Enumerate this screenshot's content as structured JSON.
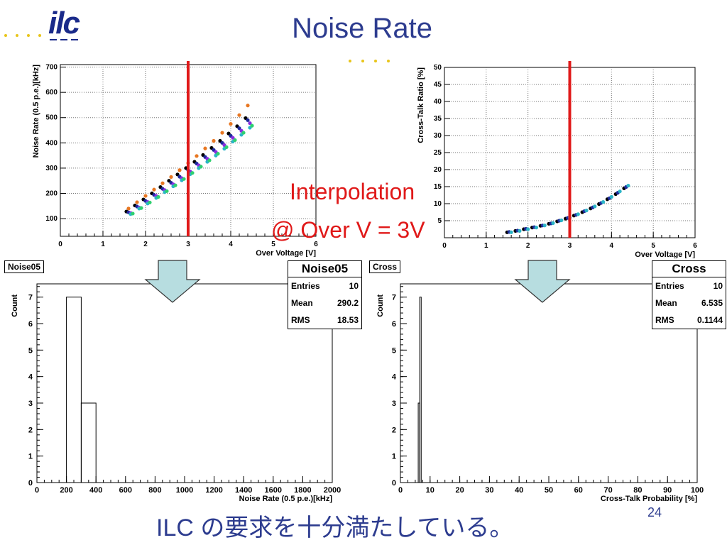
{
  "header": {
    "logo_text": "ilc",
    "title": "Noise Rate"
  },
  "annotation": {
    "line1": "Interpolation",
    "line2": "@ Over V = 3V"
  },
  "footer": {
    "text": "ILC の要求を十分満たしている。",
    "page_number": "24"
  },
  "colors": {
    "marker_line": "#e01919",
    "arrow_fill": "#b7dde0",
    "title": "#2d3c8f"
  },
  "chart_data": [
    {
      "id": "noise_vs_voltage",
      "type": "scatter",
      "xlabel": "Over Voltage [V]",
      "ylabel": "Noise Rate (0.5 p.e.)[kHz]",
      "xlim": [
        0,
        6
      ],
      "ylim": [
        30,
        710
      ],
      "xticks": [
        0,
        1,
        2,
        3,
        4,
        5,
        6
      ],
      "yticks": [
        100,
        200,
        300,
        400,
        500,
        600,
        700
      ],
      "grid": true,
      "vline": 3,
      "series": [
        {
          "color": "#e87722",
          "points": [
            [
              1.6,
              140
            ],
            [
              1.8,
              165
            ],
            [
              2.0,
              190
            ],
            [
              2.2,
              215
            ],
            [
              2.4,
              240
            ],
            [
              2.6,
              265
            ],
            [
              2.8,
              292
            ],
            [
              3.0,
              320
            ],
            [
              3.2,
              348
            ],
            [
              3.4,
              378
            ],
            [
              3.6,
              408
            ],
            [
              3.8,
              440
            ],
            [
              4.0,
              475
            ],
            [
              4.2,
              510
            ],
            [
              4.4,
              548
            ]
          ]
        },
        {
          "color": "#000000",
          "points": [
            [
              1.55,
              128
            ],
            [
              1.75,
              152
            ],
            [
              1.95,
              176
            ],
            [
              2.15,
              200
            ],
            [
              2.35,
              225
            ],
            [
              2.55,
              250
            ],
            [
              2.75,
              275
            ],
            [
              2.95,
              300
            ],
            [
              3.15,
              325
            ],
            [
              3.35,
              352
            ],
            [
              3.55,
              380
            ],
            [
              3.75,
              408
            ],
            [
              3.95,
              437
            ],
            [
              4.15,
              466
            ],
            [
              4.35,
              498
            ]
          ]
        },
        {
          "color": "#1e2a9c",
          "points": [
            [
              1.6,
              125
            ],
            [
              1.8,
              148
            ],
            [
              2.0,
              170
            ],
            [
              2.2,
              194
            ],
            [
              2.4,
              218
            ],
            [
              2.6,
              242
            ],
            [
              2.8,
              266
            ],
            [
              3.0,
              292
            ],
            [
              3.2,
              318
            ],
            [
              3.4,
              344
            ],
            [
              3.6,
              372
            ],
            [
              3.8,
              400
            ],
            [
              4.0,
              428
            ],
            [
              4.2,
              458
            ],
            [
              4.4,
              490
            ]
          ]
        },
        {
          "color": "#8a2be2",
          "points": [
            [
              1.65,
              122
            ],
            [
              1.85,
              144
            ],
            [
              2.05,
              166
            ],
            [
              2.25,
              190
            ],
            [
              2.45,
              213
            ],
            [
              2.65,
              236
            ],
            [
              2.85,
              260
            ],
            [
              3.05,
              286
            ],
            [
              3.25,
              311
            ],
            [
              3.45,
              337
            ],
            [
              3.65,
              364
            ],
            [
              3.85,
              391
            ],
            [
              4.05,
              420
            ],
            [
              4.25,
              448
            ],
            [
              4.45,
              478
            ]
          ]
        },
        {
          "color": "#2ab5c7",
          "points": [
            [
              1.65,
              118
            ],
            [
              1.85,
              140
            ],
            [
              2.05,
              160
            ],
            [
              2.25,
              182
            ],
            [
              2.45,
              205
            ],
            [
              2.65,
              228
            ],
            [
              2.85,
              252
            ],
            [
              3.05,
              276
            ],
            [
              3.25,
              300
            ],
            [
              3.45,
              325
            ],
            [
              3.65,
              350
            ],
            [
              3.85,
              377
            ],
            [
              4.05,
              405
            ],
            [
              4.25,
              432
            ],
            [
              4.45,
              460
            ]
          ]
        },
        {
          "color": "#2fd06f",
          "points": [
            [
              1.7,
              120
            ],
            [
              1.9,
              142
            ],
            [
              2.1,
              164
            ],
            [
              2.3,
              186
            ],
            [
              2.5,
              209
            ],
            [
              2.7,
              232
            ],
            [
              2.9,
              257
            ],
            [
              3.1,
              281
            ],
            [
              3.3,
              306
            ],
            [
              3.5,
              331
            ],
            [
              3.7,
              357
            ],
            [
              3.9,
              383
            ],
            [
              4.1,
              411
            ],
            [
              4.3,
              440
            ],
            [
              4.5,
              468
            ]
          ]
        }
      ]
    },
    {
      "id": "crosstalk_vs_voltage",
      "type": "scatter",
      "xlabel": "Over Voltage [V]",
      "ylabel": "Cross-Talk  Ratio [%]",
      "xlim": [
        0,
        6
      ],
      "ylim": [
        0,
        50
      ],
      "xticks": [
        0,
        1,
        2,
        3,
        4,
        5,
        6
      ],
      "yticks": [
        5,
        10,
        15,
        20,
        25,
        30,
        35,
        40,
        45,
        50
      ],
      "grid": true,
      "vline": 3,
      "series": [
        {
          "color": "#000000",
          "points": [
            [
              1.5,
              1.6
            ],
            [
              1.7,
              2.0
            ],
            [
              1.9,
              2.5
            ],
            [
              2.1,
              3.0
            ],
            [
              2.3,
              3.5
            ],
            [
              2.5,
              4.1
            ],
            [
              2.7,
              4.8
            ],
            [
              2.9,
              5.6
            ],
            [
              3.1,
              6.5
            ],
            [
              3.3,
              7.5
            ],
            [
              3.5,
              8.6
            ],
            [
              3.7,
              9.9
            ],
            [
              3.9,
              11.3
            ],
            [
              4.1,
              12.8
            ],
            [
              4.3,
              14.5
            ]
          ]
        },
        {
          "color": "#1e2a9c",
          "points": [
            [
              1.55,
              1.7
            ],
            [
              1.75,
              2.1
            ],
            [
              1.95,
              2.6
            ],
            [
              2.15,
              3.1
            ],
            [
              2.35,
              3.6
            ],
            [
              2.55,
              4.2
            ],
            [
              2.75,
              5.0
            ],
            [
              2.95,
              5.8
            ],
            [
              3.15,
              6.7
            ],
            [
              3.35,
              7.8
            ],
            [
              3.55,
              8.9
            ],
            [
              3.75,
              10.2
            ],
            [
              3.95,
              11.6
            ],
            [
              4.15,
              13.2
            ],
            [
              4.35,
              14.9
            ]
          ]
        },
        {
          "color": "#2ab5c7",
          "points": [
            [
              1.6,
              1.6
            ],
            [
              1.8,
              2.0
            ],
            [
              2.0,
              2.5
            ],
            [
              2.2,
              3.0
            ],
            [
              2.4,
              3.6
            ],
            [
              2.6,
              4.3
            ],
            [
              2.8,
              5.1
            ],
            [
              3.0,
              5.9
            ],
            [
              3.2,
              6.9
            ],
            [
              3.4,
              8.0
            ],
            [
              3.6,
              9.2
            ],
            [
              3.8,
              10.5
            ],
            [
              4.0,
              12.0
            ],
            [
              4.2,
              13.6
            ],
            [
              4.4,
              15.3
            ]
          ]
        }
      ]
    },
    {
      "id": "noise05_hist",
      "type": "bar",
      "name": "Noise05",
      "xlabel": "Noise Rate (0.5 p.e.)[kHz]",
      "ylabel": "Count",
      "xlim": [
        0,
        2000
      ],
      "ylim": [
        0,
        7.5
      ],
      "xticks": [
        0,
        200,
        400,
        600,
        800,
        1000,
        1200,
        1400,
        1600,
        1800,
        2000
      ],
      "yticks": [
        0,
        1,
        2,
        3,
        4,
        5,
        6,
        7
      ],
      "bins": [
        {
          "lo": 200,
          "hi": 300,
          "count": 7
        },
        {
          "lo": 300,
          "hi": 400,
          "count": 3
        }
      ],
      "stats": {
        "title": "Noise05",
        "entries_label": "Entries",
        "entries": "10",
        "mean_label": "Mean",
        "mean": "290.2",
        "rms_label": "RMS",
        "rms": "18.53"
      }
    },
    {
      "id": "cross_hist",
      "type": "bar",
      "name": "Cross",
      "xlabel": "Cross-Talk Probability [%]",
      "ylabel": "Count",
      "xlim": [
        0,
        100
      ],
      "ylim": [
        0,
        7.5
      ],
      "xticks": [
        0,
        10,
        20,
        30,
        40,
        50,
        60,
        70,
        80,
        90,
        100
      ],
      "yticks": [
        0,
        1,
        2,
        3,
        4,
        5,
        6,
        7
      ],
      "bins": [
        {
          "lo": 6.0,
          "hi": 6.5,
          "count": 3
        },
        {
          "lo": 6.5,
          "hi": 7.0,
          "count": 7
        }
      ],
      "stats": {
        "title": "Cross",
        "entries_label": "Entries",
        "entries": "10",
        "mean_label": "Mean",
        "mean": "6.535",
        "rms_label": "RMS",
        "rms": "0.1144"
      }
    }
  ]
}
